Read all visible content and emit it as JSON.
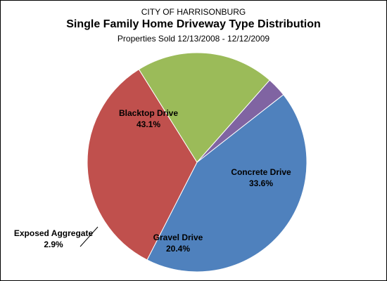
{
  "chart_data": {
    "type": "pie",
    "org": "CITY OF HARRISONBURG",
    "title": "Single Family Home Driveway Type Distribution",
    "subtitle": "Properties Sold 12/13/2008 - 12/12/2009",
    "slices": [
      {
        "label": "Blacktop Drive",
        "value": 43.1,
        "value_label": "43.1%",
        "color": "#4F81BD"
      },
      {
        "label": "Concrete Drive",
        "value": 33.6,
        "value_label": "33.6%",
        "color": "#C0504D"
      },
      {
        "label": "Gravel Drive",
        "value": 20.4,
        "value_label": "20.4%",
        "color": "#9BBB59"
      },
      {
        "label": "Exposed Aggregate",
        "value": 2.9,
        "value_label": "2.9%",
        "color": "#8064A2"
      }
    ]
  }
}
